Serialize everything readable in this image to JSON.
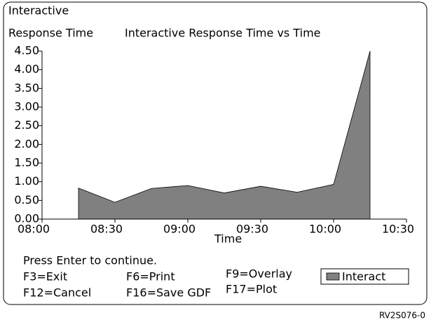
{
  "chart_data": {
    "type": "area",
    "title": "Interactive Response Time vs Time",
    "ylabel_lines": [
      "Interactive",
      "Response Time"
    ],
    "xlabel": "Time",
    "x": [
      "08:15",
      "08:30",
      "08:45",
      "09:00",
      "09:15",
      "09:30",
      "09:45",
      "10:00",
      "10:15"
    ],
    "series": [
      {
        "name": "Interact",
        "color": "#808080",
        "values": [
          0.83,
          0.45,
          0.82,
          0.9,
          0.7,
          0.88,
          0.72,
          0.93,
          4.5
        ]
      }
    ],
    "xlim": [
      "08:00",
      "10:30"
    ],
    "xticks": [
      "08:00",
      "08:30",
      "09:00",
      "09:30",
      "10:00",
      "10:30"
    ],
    "ylim": [
      0,
      4.5
    ],
    "yticks": [
      {
        "value": 0,
        "label": "0.00"
      },
      {
        "value": 0.5,
        "label": "0.50"
      },
      {
        "value": 1,
        "label": "1.00"
      },
      {
        "value": 1.5,
        "label": "1.50"
      },
      {
        "value": 2,
        "label": "2.00"
      },
      {
        "value": 2.5,
        "label": "2.50"
      },
      {
        "value": 3,
        "label": "3.00"
      },
      {
        "value": 3.5,
        "label": "3.50"
      },
      {
        "value": 4,
        "label": "4.00"
      },
      {
        "value": 4.5,
        "label": "4.50"
      }
    ],
    "legend": "bottom-right"
  },
  "footer": {
    "prompt": "Press Enter to continue.",
    "keys": [
      "F3=Exit",
      "F12=Cancel",
      "F6=Print",
      "F16=Save GDF",
      "F9=Overlay",
      "F17=Plot"
    ],
    "figure_id": "RV2S076-0"
  }
}
